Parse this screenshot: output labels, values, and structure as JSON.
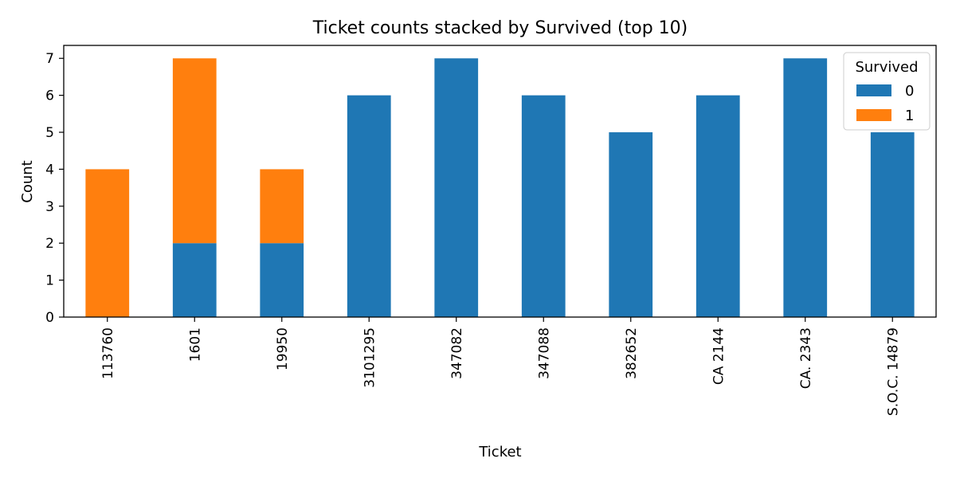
{
  "chart_data": {
    "type": "bar",
    "stacked": true,
    "title": "Ticket counts stacked by Survived (top 10)",
    "xlabel": "Ticket",
    "ylabel": "Count",
    "categories": [
      "113760",
      "1601",
      "19950",
      "3101295",
      "347082",
      "347088",
      "382652",
      "CA 2144",
      "CA. 2343",
      "S.O.C. 14879"
    ],
    "series": [
      {
        "name": "0",
        "color": "#1f77b4",
        "values": [
          0,
          2,
          2,
          6,
          7,
          6,
          5,
          6,
          7,
          5
        ]
      },
      {
        "name": "1",
        "color": "#ff7f0e",
        "values": [
          4,
          5,
          2,
          0,
          0,
          0,
          0,
          0,
          0,
          0
        ]
      }
    ],
    "ylim": [
      0,
      7.35
    ],
    "yticks": [
      0,
      1,
      2,
      3,
      4,
      5,
      6,
      7
    ],
    "grid": false,
    "legend": {
      "title": "Survived",
      "placement": "top-right"
    }
  }
}
